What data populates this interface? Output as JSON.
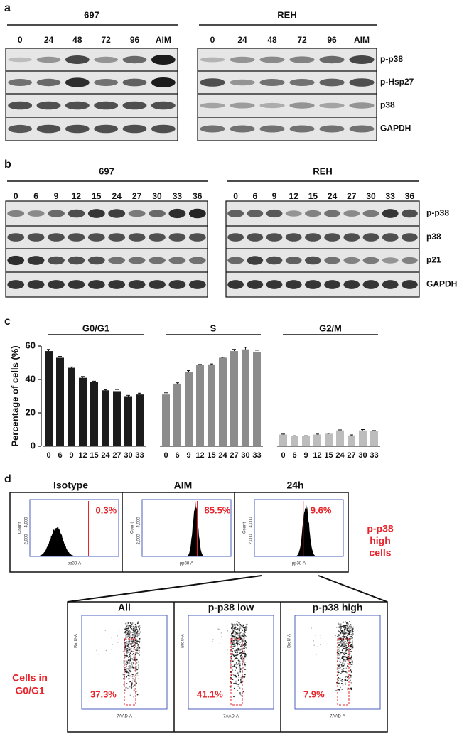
{
  "panel_a": {
    "label": "a",
    "groups": [
      {
        "name": "697",
        "lanes": [
          "0",
          "24",
          "48",
          "72",
          "96",
          "AIM"
        ]
      },
      {
        "name": "REH",
        "lanes": [
          "0",
          "24",
          "48",
          "72",
          "96",
          "AIM"
        ]
      }
    ],
    "proteins": [
      "p-p38",
      "p-Hsp27",
      "p38",
      "GAPDH"
    ]
  },
  "panel_b": {
    "label": "b",
    "groups": [
      {
        "name": "697",
        "lanes": [
          "0",
          "6",
          "9",
          "12",
          "15",
          "24",
          "27",
          "30",
          "33",
          "36"
        ]
      },
      {
        "name": "REH",
        "lanes": [
          "0",
          "6",
          "9",
          "12",
          "15",
          "24",
          "27",
          "30",
          "33",
          "36"
        ]
      }
    ],
    "proteins": [
      "p-p38",
      "p38",
      "p21",
      "GAPDH"
    ]
  },
  "chart_data": {
    "type": "bar",
    "label": "c",
    "ylabel": "Percentage of cells (%)",
    "ylim": [
      0,
      60
    ],
    "yticks": [
      0,
      20,
      40,
      60
    ],
    "groups": [
      {
        "name": "G0/G1",
        "color": "#1c1c1c",
        "categories": [
          "0",
          "6",
          "9",
          "12",
          "15",
          "24",
          "27",
          "30",
          "33"
        ],
        "values": [
          57,
          53,
          47,
          41,
          38.5,
          33.5,
          33,
          30,
          31
        ],
        "errors": [
          1,
          0.8,
          0.5,
          0.8,
          0.5,
          0.3,
          1,
          0.5,
          0.8
        ]
      },
      {
        "name": "S",
        "color": "#8c8c8c",
        "categories": [
          "0",
          "6",
          "9",
          "12",
          "15",
          "24",
          "27",
          "30",
          "33"
        ],
        "values": [
          31,
          37.5,
          44.5,
          48.5,
          49,
          53,
          57,
          58,
          56.5
        ],
        "errors": [
          1,
          0.5,
          0.8,
          0.5,
          0.3,
          0.3,
          1,
          1.2,
          1
        ]
      },
      {
        "name": "G2/M",
        "color": "#bdbdbd",
        "categories": [
          "0",
          "6",
          "9",
          "12",
          "15",
          "24",
          "27",
          "30",
          "33"
        ],
        "values": [
          7,
          6,
          6,
          7,
          7.5,
          9.5,
          6.5,
          9.5,
          9
        ],
        "errors": [
          0.3,
          0.3,
          0.3,
          0.3,
          0.3,
          0.3,
          0.3,
          0.5,
          0.4
        ]
      }
    ]
  },
  "panel_d": {
    "label": "d",
    "top": {
      "plots": [
        {
          "title": "Isotype",
          "percent": "0.3%"
        },
        {
          "title": "AIM",
          "percent": "85.5%"
        },
        {
          "title": "24h",
          "percent": "9.6%"
        }
      ],
      "ylabel": "Count",
      "xlabel": "pp38-A",
      "yticks": [
        "2,000",
        "4,000"
      ],
      "side_label": [
        "p-p38",
        "high",
        "cells"
      ]
    },
    "bottom": {
      "plots": [
        {
          "title": "All",
          "percent": "37.3%"
        },
        {
          "title": "p-p38 low",
          "percent": "41.1%"
        },
        {
          "title": "p-p38 high",
          "percent": "7.9%"
        }
      ],
      "ylabel": "BrdU-A",
      "xlabel": "7AAD-A",
      "side_label": [
        "Cells in",
        "G0/G1"
      ]
    }
  }
}
